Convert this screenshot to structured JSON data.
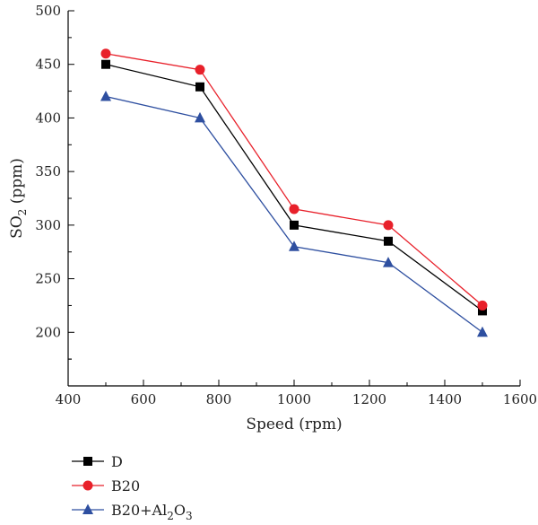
{
  "chart_data": {
    "type": "line",
    "xlabel": "Speed (rpm)",
    "ylabel": {
      "main": "SO",
      "sub": "2",
      "rest": " (ppm)"
    },
    "xlim": [
      400,
      1600
    ],
    "ylim": [
      150,
      500
    ],
    "xticks": [
      400,
      600,
      800,
      1000,
      1200,
      1400,
      1600
    ],
    "yticks": [
      200,
      250,
      300,
      350,
      400,
      450,
      500
    ],
    "grid": false,
    "legend_position": "bottom-left",
    "x": [
      500,
      750,
      1000,
      1250,
      1500
    ],
    "series": [
      {
        "name": "D",
        "name_parts": [
          {
            "t": "D"
          }
        ],
        "values": [
          450,
          429,
          300,
          285,
          220
        ],
        "color": "#000000",
        "marker": "square"
      },
      {
        "name": "B20",
        "name_parts": [
          {
            "t": "B20"
          }
        ],
        "values": [
          460,
          445,
          315,
          300,
          225
        ],
        "color": "#e8202a",
        "marker": "circle"
      },
      {
        "name": "B20+Al2O3",
        "name_parts": [
          {
            "t": "B20+Al"
          },
          {
            "t": "2",
            "sub": true
          },
          {
            "t": "O"
          },
          {
            "t": "3",
            "sub": true
          }
        ],
        "values": [
          420,
          400,
          280,
          265,
          200
        ],
        "color": "#2e4fa0",
        "marker": "triangle"
      }
    ]
  }
}
